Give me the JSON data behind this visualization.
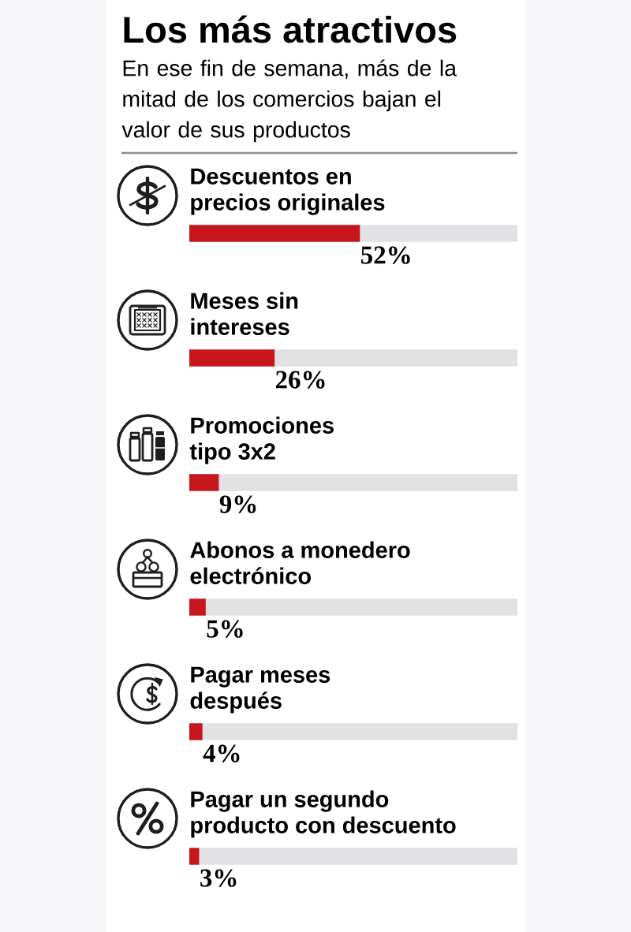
{
  "chart_data": {
    "type": "bar",
    "orientation": "horizontal",
    "title": "Los más atractivos",
    "subtitle": "En ese fin de semana, más de la mitad de los comercios bajan el valor de sus productos",
    "categories": [
      "Descuentos en\nprecios originales",
      "Meses sin\nintereses",
      "Promociones\ntipo 3x2",
      "Abonos a monedero\nelectrónico",
      "Pagar meses\ndespués",
      "Pagar un segundo\nproducto con descuento"
    ],
    "values": [
      52,
      26,
      9,
      5,
      4,
      3
    ],
    "color": "#c8161e",
    "value_labels": [
      "52%",
      "26%",
      "9%",
      "5%",
      "4%",
      "3%"
    ],
    "xlim": [
      0,
      100
    ],
    "tick_labels": "y"
  }
}
